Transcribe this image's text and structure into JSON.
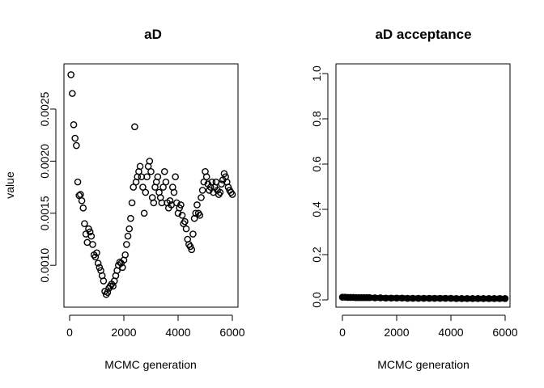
{
  "shared": {
    "ylabel": "value"
  },
  "chart_data": [
    {
      "type": "scatter",
      "title": "aD",
      "xlabel": "MCMC generation",
      "xlim": [
        0,
        6000
      ],
      "ylim": [
        0.00066,
        0.00288
      ],
      "x_ticks": [
        0,
        2000,
        4000,
        6000
      ],
      "x_tick_labels": [
        "0",
        "2000",
        "4000",
        "6000"
      ],
      "y_ticks": [
        0.001,
        0.0015,
        0.002,
        0.0025
      ],
      "y_tick_labels": [
        "0.0010",
        "0.0015",
        "0.0020",
        "0.0025"
      ],
      "marker": "open-circle",
      "series": [
        {
          "x": [
            50,
            100,
            150,
            200,
            250,
            300,
            350,
            400,
            450,
            500,
            550,
            600,
            650,
            700,
            750,
            800,
            850,
            900,
            950,
            1000,
            1050,
            1100,
            1150,
            1200,
            1250,
            1300,
            1350,
            1400,
            1450,
            1500,
            1550,
            1600,
            1650,
            1700,
            1750,
            1800,
            1850,
            1900,
            1950,
            2000,
            2050,
            2100,
            2150,
            2200,
            2250,
            2300,
            2350,
            2400,
            2450,
            2500,
            2550,
            2600,
            2650,
            2700,
            2750,
            2800,
            2850,
            2900,
            2950,
            3000,
            3050,
            3100,
            3150,
            3200,
            3250,
            3300,
            3350,
            3400,
            3450,
            3500,
            3550,
            3600,
            3650,
            3700,
            3750,
            3800,
            3850,
            3900,
            3950,
            4000,
            4050,
            4100,
            4150,
            4200,
            4250,
            4300,
            4350,
            4400,
            4450,
            4500,
            4550,
            4600,
            4650,
            4700,
            4750,
            4800,
            4850,
            4900,
            4950,
            5000,
            5050,
            5100,
            5150,
            5200,
            5250,
            5300,
            5350,
            5400,
            5450,
            5500,
            5550,
            5600,
            5650,
            5700,
            5750,
            5800,
            5850,
            5900,
            5950,
            6000
          ],
          "y": [
            0.00283,
            0.00265,
            0.00235,
            0.00222,
            0.00215,
            0.0018,
            0.00167,
            0.00168,
            0.00162,
            0.00155,
            0.0014,
            0.0013,
            0.00122,
            0.00135,
            0.00132,
            0.00128,
            0.0012,
            0.0011,
            0.00108,
            0.00112,
            0.00102,
            0.00098,
            0.00095,
            0.0009,
            0.00085,
            0.00075,
            0.00072,
            0.00074,
            0.00078,
            0.0008,
            0.00082,
            0.0008,
            0.00085,
            0.0009,
            0.00095,
            0.001,
            0.00103,
            0.00102,
            0.00098,
            0.00105,
            0.0011,
            0.0012,
            0.00128,
            0.00135,
            0.00145,
            0.0016,
            0.00175,
            0.00233,
            0.0018,
            0.00185,
            0.0019,
            0.00195,
            0.00185,
            0.00175,
            0.0015,
            0.0017,
            0.00185,
            0.00195,
            0.002,
            0.0019,
            0.00165,
            0.0016,
            0.00175,
            0.0018,
            0.00185,
            0.0017,
            0.00165,
            0.0016,
            0.00175,
            0.0019,
            0.0018,
            0.0016,
            0.00155,
            0.00162,
            0.00158,
            0.00175,
            0.0017,
            0.00185,
            0.0016,
            0.0015,
            0.00155,
            0.00158,
            0.00148,
            0.0014,
            0.00142,
            0.00135,
            0.00125,
            0.0012,
            0.00118,
            0.00115,
            0.0013,
            0.00145,
            0.0015,
            0.00158,
            0.0015,
            0.00148,
            0.00165,
            0.00172,
            0.0018,
            0.0019,
            0.00185,
            0.00178,
            0.00172,
            0.00175,
            0.0018,
            0.0017,
            0.00175,
            0.0018,
            0.00172,
            0.00168,
            0.0017,
            0.00178,
            0.00182,
            0.00188,
            0.00185,
            0.0018,
            0.00175,
            0.00172,
            0.0017,
            0.00168
          ]
        }
      ]
    },
    {
      "type": "scatter",
      "title": "aD acceptance",
      "xlabel": "MCMC generation",
      "xlim": [
        0,
        6000
      ],
      "ylim": [
        0,
        1
      ],
      "x_ticks": [
        0,
        2000,
        4000,
        6000
      ],
      "x_tick_labels": [
        "0",
        "2000",
        "4000",
        "6000"
      ],
      "y_ticks": [
        0.0,
        0.2,
        0.4,
        0.6,
        0.8,
        1.0
      ],
      "y_tick_labels": [
        "0.0",
        "0.2",
        "0.4",
        "0.6",
        "0.8",
        "1.0"
      ],
      "marker": "open-circle",
      "series": [
        {
          "x": [
            0,
            100,
            200,
            300,
            400,
            500,
            600,
            700,
            800,
            900,
            1000,
            1200,
            1400,
            1600,
            1800,
            2000,
            2200,
            2400,
            2600,
            2800,
            3000,
            3200,
            3400,
            3600,
            3800,
            4000,
            4200,
            4400,
            4600,
            4800,
            5000,
            5200,
            5400,
            5600,
            5800,
            6000
          ],
          "y": [
            0.012,
            0.012,
            0.011,
            0.011,
            0.011,
            0.01,
            0.01,
            0.01,
            0.01,
            0.01,
            0.01,
            0.009,
            0.009,
            0.008,
            0.008,
            0.008,
            0.008,
            0.007,
            0.007,
            0.007,
            0.007,
            0.007,
            0.007,
            0.007,
            0.007,
            0.007,
            0.006,
            0.006,
            0.006,
            0.006,
            0.006,
            0.006,
            0.006,
            0.006,
            0.006,
            0.006
          ]
        }
      ]
    }
  ]
}
